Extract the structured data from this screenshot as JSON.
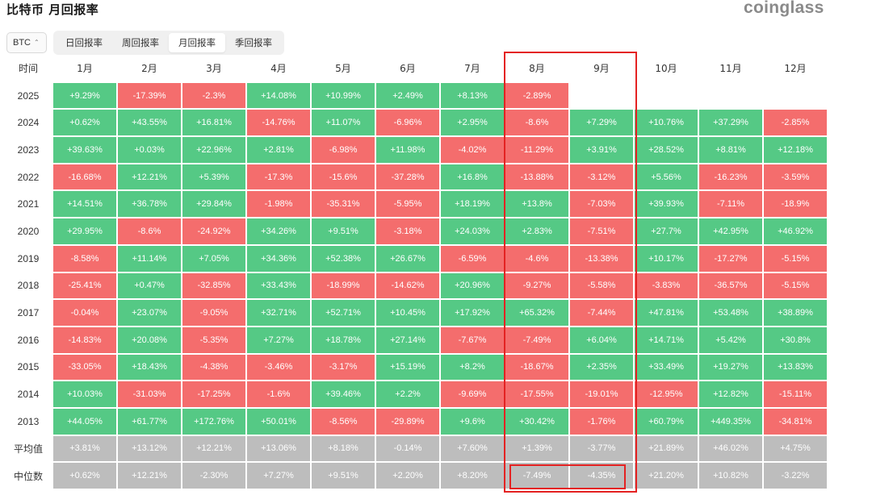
{
  "title": "比特币 月回报率",
  "brand": "coinglass",
  "asset_selector": {
    "value": "BTC"
  },
  "period_tabs": [
    {
      "label": "日回报率",
      "active": false
    },
    {
      "label": "周回报率",
      "active": false
    },
    {
      "label": "月回报率",
      "active": true
    },
    {
      "label": "季回报率",
      "active": false
    }
  ],
  "colors": {
    "positive": "#55c985",
    "negative": "#f46d6d",
    "stat": "#bdbdbd",
    "highlight": "#e42222"
  },
  "table": {
    "corner": "时间",
    "months": [
      "1月",
      "2月",
      "3月",
      "4月",
      "5月",
      "6月",
      "7月",
      "8月",
      "9月",
      "10月",
      "11月",
      "12月"
    ],
    "rows": [
      {
        "label": "2025",
        "type": "year",
        "values": [
          "+9.29%",
          "-17.39%",
          "-2.3%",
          "+14.08%",
          "+10.99%",
          "+2.49%",
          "+8.13%",
          "-2.89%",
          "",
          "",
          "",
          ""
        ]
      },
      {
        "label": "2024",
        "type": "year",
        "values": [
          "+0.62%",
          "+43.55%",
          "+16.81%",
          "-14.76%",
          "+11.07%",
          "-6.96%",
          "+2.95%",
          "-8.6%",
          "+7.29%",
          "+10.76%",
          "+37.29%",
          "-2.85%"
        ]
      },
      {
        "label": "2023",
        "type": "year",
        "values": [
          "+39.63%",
          "+0.03%",
          "+22.96%",
          "+2.81%",
          "-6.98%",
          "+11.98%",
          "-4.02%",
          "-11.29%",
          "+3.91%",
          "+28.52%",
          "+8.81%",
          "+12.18%"
        ]
      },
      {
        "label": "2022",
        "type": "year",
        "values": [
          "-16.68%",
          "+12.21%",
          "+5.39%",
          "-17.3%",
          "-15.6%",
          "-37.28%",
          "+16.8%",
          "-13.88%",
          "-3.12%",
          "+5.56%",
          "-16.23%",
          "-3.59%"
        ]
      },
      {
        "label": "2021",
        "type": "year",
        "values": [
          "+14.51%",
          "+36.78%",
          "+29.84%",
          "-1.98%",
          "-35.31%",
          "-5.95%",
          "+18.19%",
          "+13.8%",
          "-7.03%",
          "+39.93%",
          "-7.11%",
          "-18.9%"
        ]
      },
      {
        "label": "2020",
        "type": "year",
        "values": [
          "+29.95%",
          "-8.6%",
          "-24.92%",
          "+34.26%",
          "+9.51%",
          "-3.18%",
          "+24.03%",
          "+2.83%",
          "-7.51%",
          "+27.7%",
          "+42.95%",
          "+46.92%"
        ]
      },
      {
        "label": "2019",
        "type": "year",
        "values": [
          "-8.58%",
          "+11.14%",
          "+7.05%",
          "+34.36%",
          "+52.38%",
          "+26.67%",
          "-6.59%",
          "-4.6%",
          "-13.38%",
          "+10.17%",
          "-17.27%",
          "-5.15%"
        ]
      },
      {
        "label": "2018",
        "type": "year",
        "values": [
          "-25.41%",
          "+0.47%",
          "-32.85%",
          "+33.43%",
          "-18.99%",
          "-14.62%",
          "+20.96%",
          "-9.27%",
          "-5.58%",
          "-3.83%",
          "-36.57%",
          "-5.15%"
        ]
      },
      {
        "label": "2017",
        "type": "year",
        "values": [
          "-0.04%",
          "+23.07%",
          "-9.05%",
          "+32.71%",
          "+52.71%",
          "+10.45%",
          "+17.92%",
          "+65.32%",
          "-7.44%",
          "+47.81%",
          "+53.48%",
          "+38.89%"
        ]
      },
      {
        "label": "2016",
        "type": "year",
        "values": [
          "-14.83%",
          "+20.08%",
          "-5.35%",
          "+7.27%",
          "+18.78%",
          "+27.14%",
          "-7.67%",
          "-7.49%",
          "+6.04%",
          "+14.71%",
          "+5.42%",
          "+30.8%"
        ]
      },
      {
        "label": "2015",
        "type": "year",
        "values": [
          "-33.05%",
          "+18.43%",
          "-4.38%",
          "-3.46%",
          "-3.17%",
          "+15.19%",
          "+8.2%",
          "-18.67%",
          "+2.35%",
          "+33.49%",
          "+19.27%",
          "+13.83%"
        ]
      },
      {
        "label": "2014",
        "type": "year",
        "values": [
          "+10.03%",
          "-31.03%",
          "-17.25%",
          "-1.6%",
          "+39.46%",
          "+2.2%",
          "-9.69%",
          "-17.55%",
          "-19.01%",
          "-12.95%",
          "+12.82%",
          "-15.11%"
        ]
      },
      {
        "label": "2013",
        "type": "year",
        "values": [
          "+44.05%",
          "+61.77%",
          "+172.76%",
          "+50.01%",
          "-8.56%",
          "-29.89%",
          "+9.6%",
          "+30.42%",
          "-1.76%",
          "+60.79%",
          "+449.35%",
          "-34.81%"
        ]
      },
      {
        "label": "平均值",
        "type": "stat",
        "values": [
          "+3.81%",
          "+13.12%",
          "+12.21%",
          "+13.06%",
          "+8.18%",
          "-0.14%",
          "+7.60%",
          "+1.39%",
          "-3.77%",
          "+21.89%",
          "+46.02%",
          "+4.75%"
        ]
      },
      {
        "label": "中位数",
        "type": "stat",
        "values": [
          "+0.62%",
          "+12.21%",
          "-2.30%",
          "+7.27%",
          "+9.51%",
          "+2.20%",
          "+8.20%",
          "-7.49%",
          "-4.35%",
          "+21.20%",
          "+10.82%",
          "-3.22%"
        ]
      }
    ]
  }
}
